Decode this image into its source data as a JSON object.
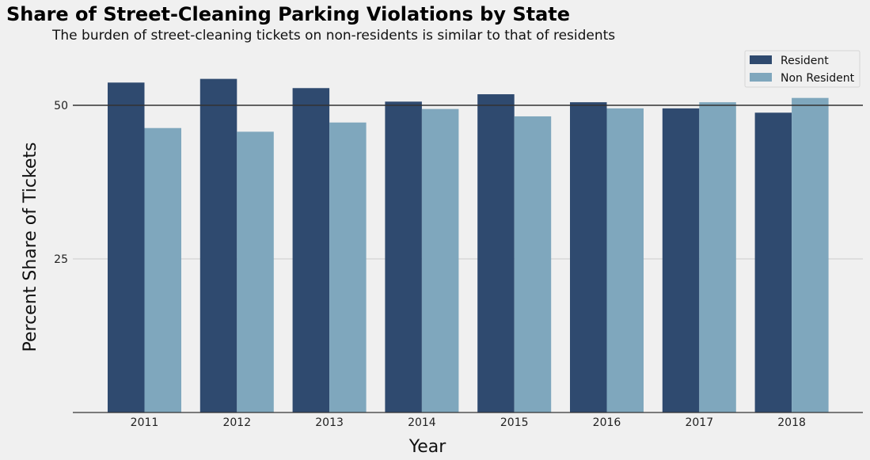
{
  "chart_data": {
    "type": "bar",
    "title": "Share of Street-Cleaning Parking Violations by State",
    "subtitle": "The burden of street-cleaning tickets on non-residents is similar to that of residents",
    "xlabel": "Year",
    "ylabel": "Percent Share of Tickets",
    "categories": [
      "2011",
      "2012",
      "2013",
      "2014",
      "2015",
      "2016",
      "2017",
      "2018"
    ],
    "series": [
      {
        "name": "Resident",
        "color": "#2f4a6f",
        "values": [
          53.7,
          54.3,
          52.8,
          50.6,
          51.8,
          50.5,
          49.5,
          48.8
        ]
      },
      {
        "name": "Non Resident",
        "color": "#7fa7bd",
        "values": [
          46.3,
          45.7,
          47.2,
          49.4,
          48.2,
          49.5,
          50.5,
          51.2
        ]
      }
    ],
    "yticks": [
      25,
      50
    ],
    "ylim": [
      0,
      57
    ],
    "reference_line": 50,
    "grid": true,
    "legend_position": "top-right"
  }
}
